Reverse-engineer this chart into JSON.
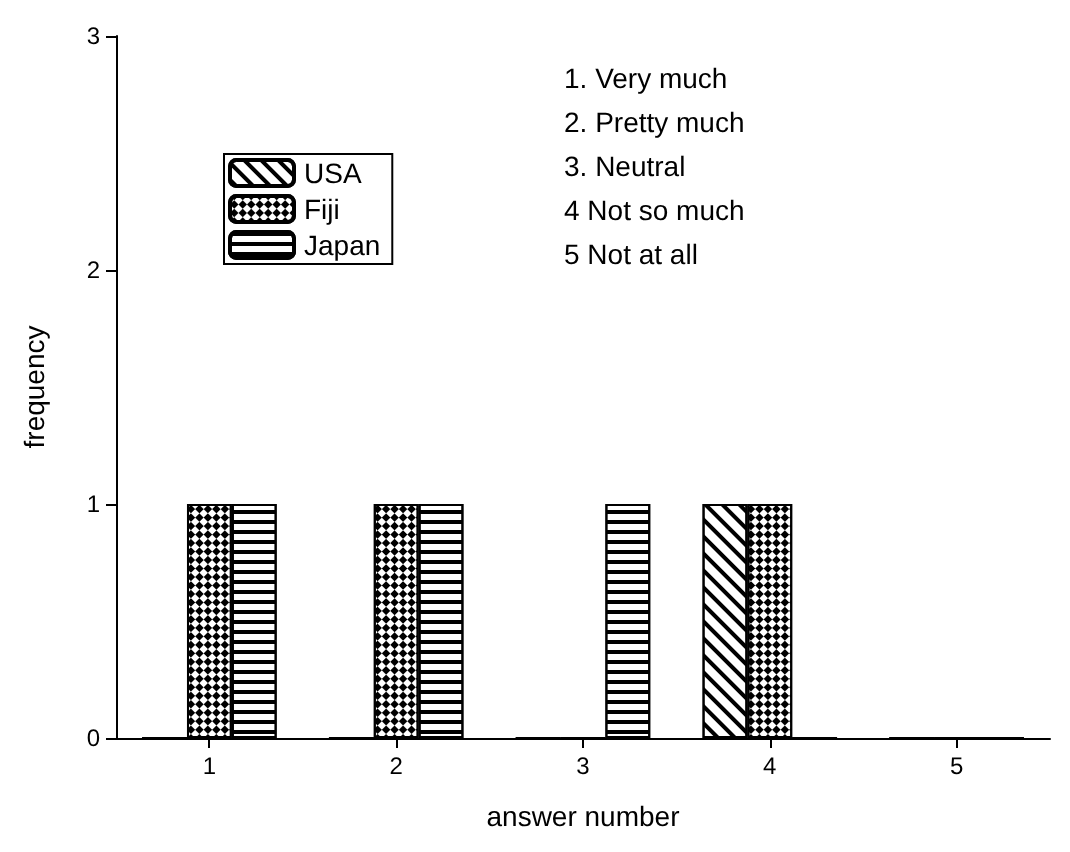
{
  "chart_data": {
    "type": "bar",
    "xlabel": "answer number",
    "ylabel": "frequency",
    "categories": [
      "1",
      "2",
      "3",
      "4",
      "5"
    ],
    "series": [
      {
        "name": "USA",
        "color": "#000000",
        "values": [
          0,
          0,
          0,
          1,
          0
        ]
      },
      {
        "name": "Fiji",
        "color": "#000000",
        "values": [
          1,
          1,
          0,
          1,
          0
        ]
      },
      {
        "name": "Japan",
        "color": "#000000",
        "values": [
          1,
          1,
          1,
          0,
          0
        ]
      }
    ],
    "ylim": [
      0,
      3
    ],
    "yticks": [
      0,
      1,
      2,
      3
    ],
    "grid": false,
    "legend": "top left",
    "annotations": [
      "1. Very much",
      "2. Pretty much",
      "3. Neutral",
      "4 Not so much",
      "5 Not at all"
    ]
  }
}
